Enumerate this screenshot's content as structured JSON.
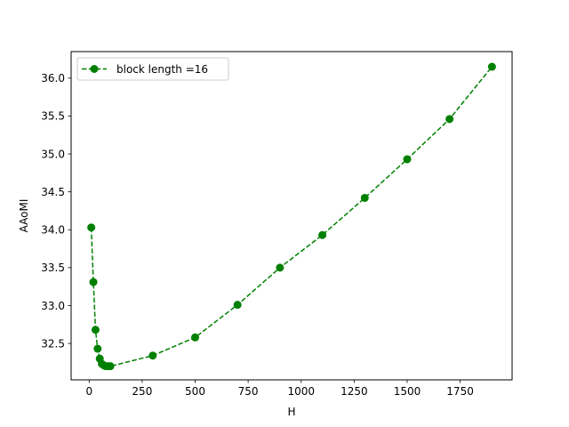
{
  "chart_data": {
    "type": "line",
    "title": "",
    "xlabel": "H",
    "ylabel": "AAoMI",
    "xlim": [
      -85,
      1995
    ],
    "ylim": [
      32.02,
      36.35
    ],
    "xticks": [
      0,
      250,
      500,
      750,
      1000,
      1250,
      1500,
      1750
    ],
    "xtick_labels": [
      "0",
      "250",
      "500",
      "750",
      "1000",
      "1250",
      "1500",
      "1750"
    ],
    "yticks": [
      32.5,
      33.0,
      33.5,
      34.0,
      34.5,
      35.0,
      35.5,
      36.0
    ],
    "ytick_labels": [
      "32.5",
      "33.0",
      "33.5",
      "34.0",
      "34.5",
      "35.0",
      "35.5",
      "36.0"
    ],
    "grid": false,
    "legend": {
      "position": "top-left"
    },
    "series": [
      {
        "name": "block length =16",
        "color": "#008000",
        "linestyle": "dashed",
        "marker": "circle",
        "x": [
          10,
          20,
          30,
          40,
          50,
          60,
          70,
          80,
          90,
          100,
          300,
          500,
          700,
          900,
          1100,
          1300,
          1500,
          1700,
          1900
        ],
        "y": [
          34.03,
          33.31,
          32.68,
          32.43,
          32.3,
          32.23,
          32.21,
          32.2,
          32.2,
          32.2,
          32.34,
          32.58,
          33.01,
          33.5,
          33.93,
          34.42,
          34.93,
          35.46,
          36.15
        ]
      }
    ]
  }
}
